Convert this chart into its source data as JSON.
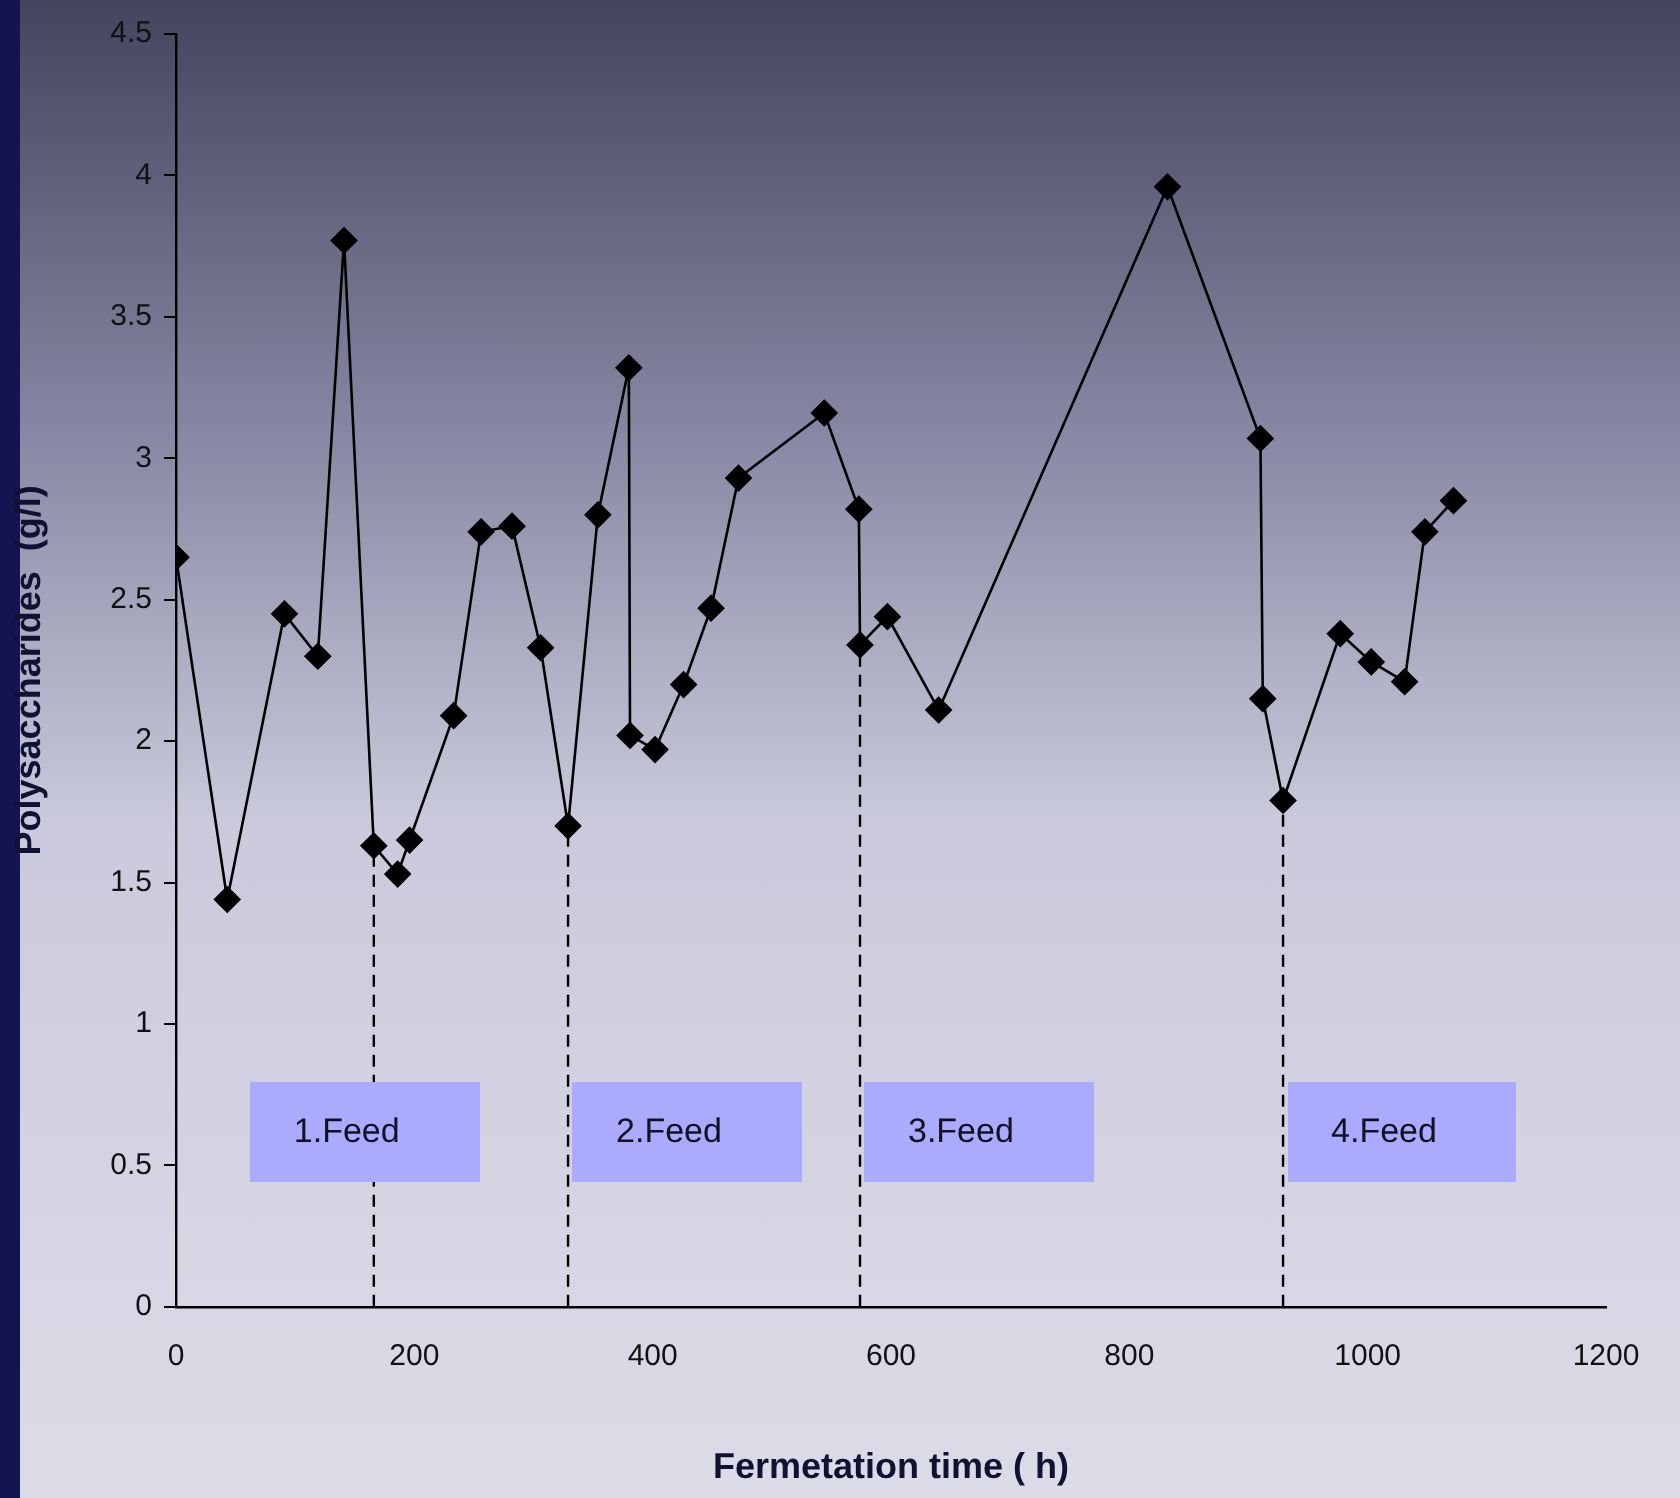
{
  "chart_data": {
    "type": "line",
    "xlabel": "Fermetation time ( h)",
    "ylabel": "Polysaccharides  (g/l)",
    "x": [
      0,
      43,
      91,
      119,
      141,
      166,
      186,
      196,
      233,
      256,
      282,
      306,
      329,
      354,
      380,
      381,
      402,
      426,
      449,
      472,
      544,
      573,
      574,
      597,
      640,
      832,
      910,
      912,
      929,
      977,
      1003,
      1031,
      1048,
      1072
    ],
    "series": [
      {
        "color": "#000000",
        "values": [
          2.65,
          1.44,
          2.45,
          2.3,
          3.77,
          1.63,
          1.53,
          1.65,
          2.09,
          2.74,
          2.76,
          2.33,
          1.7,
          2.8,
          3.32,
          2.02,
          1.97,
          2.2,
          2.47,
          2.93,
          3.16,
          2.82,
          2.34,
          2.44,
          2.11,
          3.96,
          3.07,
          2.15,
          1.79,
          2.38,
          2.28,
          2.21,
          2.74,
          2.85
        ]
      }
    ],
    "xlim": [
      0,
      1200
    ],
    "xticks": [
      0,
      200,
      400,
      600,
      800,
      1000,
      1200
    ],
    "ylim": [
      0,
      4.5
    ],
    "yticks": [
      0,
      0.5,
      1,
      1.5,
      2,
      2.5,
      3,
      3.5,
      4,
      4.5
    ],
    "grid": false,
    "legend": false,
    "marker": "diamond",
    "line_style": "solid",
    "ref_lines": [
      {
        "axis": "x",
        "value": 166,
        "label": "1.Feed",
        "line_style": "dashed",
        "color": "#000000"
      },
      {
        "axis": "x",
        "value": 329,
        "label": "2.Feed",
        "line_style": "dashed",
        "color": "#000000"
      },
      {
        "axis": "x",
        "value": 574,
        "label": "3.Feed",
        "line_style": "dashed",
        "color": "#000000"
      },
      {
        "axis": "x",
        "value": 929,
        "label": "4.Feed",
        "line_style": "dashed",
        "color": "#000000"
      }
    ]
  }
}
